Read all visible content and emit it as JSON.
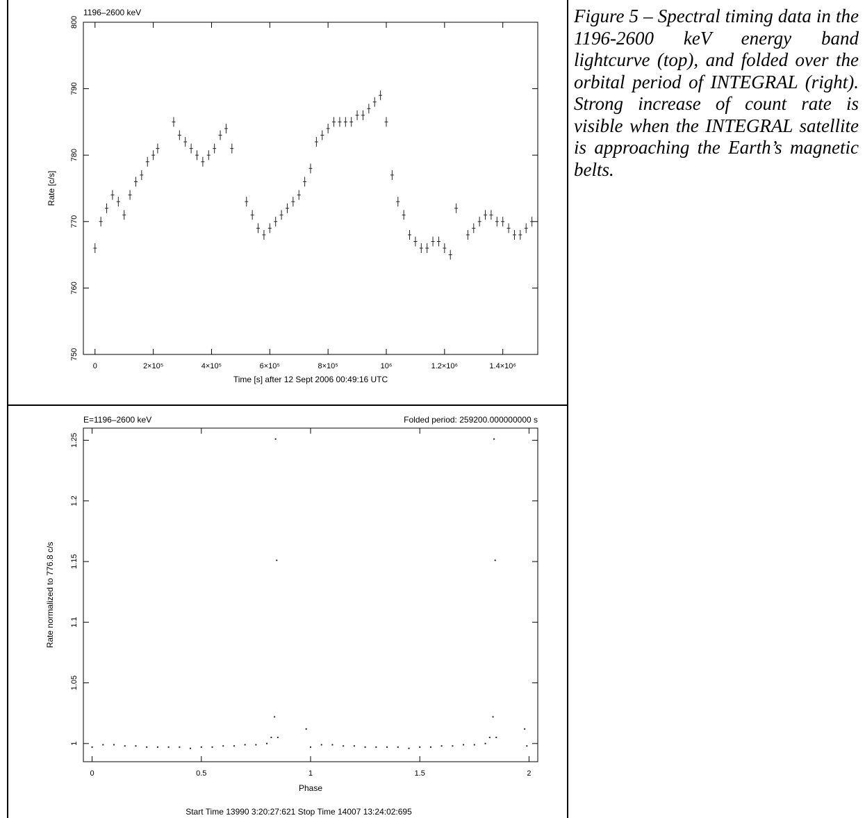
{
  "caption": "Figure 5 – Spectral timing data in the 1196-2600 keV energy band lightcurve (top), and folded over the orbital period of INTEGRAL (right). Strong increase of count rate is visible when the INTEGRAL satellite is approaching the Earth’s magnetic belts.",
  "chart_data": [
    {
      "type": "scatter",
      "title": "1196–2600 keV",
      "xlabel": "Time [s] after 12 Sept 2006 00:49:16 UTC",
      "ylabel": "Rate [c/s]",
      "xlim": [
        -40000,
        1520000
      ],
      "ylim": [
        750,
        800
      ],
      "xticks": [
        0,
        200000,
        400000,
        600000,
        800000,
        1000000,
        1200000,
        1400000
      ],
      "xtick_labels": [
        "0",
        "2×10⁵",
        "4×10⁵",
        "6×10⁵",
        "8×10⁵",
        "10⁶",
        "1.2×10⁶",
        "1.4×10⁶"
      ],
      "yticks": [
        750,
        760,
        770,
        780,
        790,
        800
      ],
      "ytick_labels": [
        "750",
        "760",
        "770",
        "780",
        "790",
        "800"
      ],
      "error_bars": true,
      "series": [
        {
          "x": [
            0,
            20000,
            40000,
            60000,
            80000,
            100000,
            120000,
            140000,
            160000,
            180000,
            200000,
            215000,
            270000,
            290000,
            310000,
            330000,
            350000,
            370000,
            390000,
            410000,
            430000,
            450000,
            470000,
            520000,
            540000,
            560000,
            580000,
            600000,
            620000,
            640000,
            660000,
            680000,
            700000,
            720000,
            740000,
            760000,
            780000,
            800000,
            820000,
            840000,
            860000,
            880000,
            900000,
            920000,
            940000,
            960000,
            980000,
            1000000,
            1020000,
            1040000,
            1060000,
            1080000,
            1100000,
            1120000,
            1140000,
            1160000,
            1180000,
            1200000,
            1220000,
            1240000,
            1280000,
            1300000,
            1320000,
            1340000,
            1360000,
            1380000,
            1400000,
            1420000,
            1440000,
            1460000,
            1480000,
            1500000
          ],
          "y": [
            766,
            770,
            772,
            774,
            773,
            771,
            774,
            776,
            777,
            779,
            780,
            781,
            785,
            783,
            782,
            781,
            780,
            779,
            780,
            781,
            783,
            784,
            781,
            773,
            771,
            769,
            768,
            769,
            770,
            771,
            772,
            773,
            774,
            776,
            778,
            782,
            783,
            784,
            785,
            785,
            785,
            785,
            786,
            786,
            787,
            788,
            789,
            785,
            777,
            773,
            771,
            768,
            767,
            766,
            766,
            767,
            767,
            766,
            765,
            772,
            768,
            769,
            770,
            771,
            771,
            770,
            770,
            769,
            768,
            768,
            769,
            770
          ]
        }
      ]
    },
    {
      "type": "scatter",
      "title": "E=1196–2600 keV",
      "subtitle": "Folded period: 259200.000000000 s",
      "xlabel": "Phase",
      "ylabel": "Rate normalized to 776.8 c/s",
      "note": "Start Time 13990  3:20:27:621    Stop Time 14007 13:24:02:695",
      "xlim": [
        -0.04,
        2.04
      ],
      "ylim": [
        0.985,
        1.26
      ],
      "xticks": [
        0,
        0.5,
        1,
        1.5,
        2
      ],
      "xtick_labels": [
        "0",
        "0.5",
        "1",
        "1.5",
        "2"
      ],
      "yticks": [
        1,
        1.05,
        1.1,
        1.15,
        1.2,
        1.25
      ],
      "ytick_labels": [
        "1",
        "1.05",
        "1.1",
        "1.15",
        "1.2",
        "1.25"
      ],
      "series": [
        {
          "x": [
            0.0,
            0.05,
            0.1,
            0.15,
            0.2,
            0.25,
            0.3,
            0.35,
            0.4,
            0.45,
            0.5,
            0.55,
            0.6,
            0.65,
            0.7,
            0.75,
            0.8,
            0.82,
            0.835,
            0.84,
            0.845,
            0.85,
            0.98,
            1.0,
            1.05,
            1.1,
            1.15,
            1.2,
            1.25,
            1.3,
            1.35,
            1.4,
            1.45,
            1.5,
            1.55,
            1.6,
            1.65,
            1.7,
            1.75,
            1.8,
            1.82,
            1.835,
            1.84,
            1.845,
            1.85,
            1.98,
            1.99
          ],
          "y": [
            0.997,
            0.999,
            0.999,
            0.998,
            0.998,
            0.997,
            0.997,
            0.997,
            0.997,
            0.996,
            0.997,
            0.997,
            0.998,
            0.998,
            0.999,
            0.999,
            1.0,
            1.005,
            1.022,
            1.251,
            1.151,
            1.005,
            1.012,
            0.997,
            0.999,
            0.999,
            0.998,
            0.998,
            0.997,
            0.997,
            0.997,
            0.997,
            0.996,
            0.997,
            0.997,
            0.998,
            0.998,
            0.999,
            0.999,
            1.0,
            1.005,
            1.022,
            1.251,
            1.151,
            1.005,
            1.012,
            0.998
          ]
        }
      ]
    }
  ]
}
